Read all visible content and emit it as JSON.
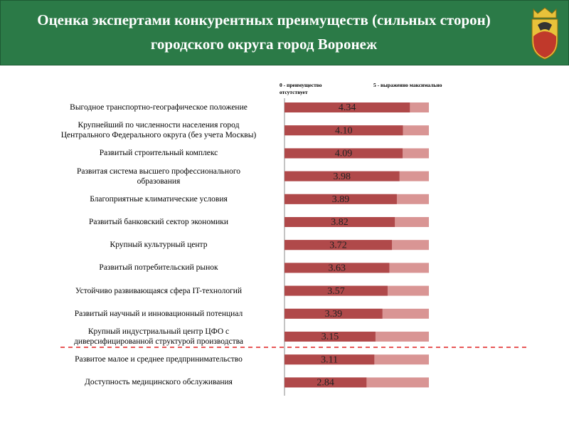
{
  "chart_data": {
    "type": "bar",
    "orientation": "horizontal",
    "title": "Оценка экспертами конкурентных преимуществ (сильных сторон) городского округа город Воронеж",
    "annotations": [
      "0 - преимущество отсутствует",
      "5 - выраженно максимально"
    ],
    "categories": [
      "Выгодное транспортно-географическое положение",
      "Крупнейший по численности населения город\nЦентрального Федерального округа (без учета Москвы)",
      "Развитый строительный комплекс",
      "Развитая система высшего профессионального\nобразования",
      "Благоприятные климатические условия",
      "Развитый банковский сектор экономики",
      "Крупный культурный центр",
      "Развитый потребительский рынок",
      "Устойчиво развивающаяся сфера IT-технологий",
      "Развитый научный и инновационный потенциал",
      "Крупный индустриальный центр ЦФО с\nдиверсифицированной структурой производства",
      "Развитое малое и среднее предпринимательство",
      "Доступность медицинского обслуживания"
    ],
    "values": [
      4.34,
      4.1,
      4.09,
      3.98,
      3.89,
      3.82,
      3.72,
      3.63,
      3.57,
      3.39,
      3.15,
      3.11,
      2.84
    ],
    "value_labels": [
      "4.34",
      "4.10",
      "4.09",
      "3.98",
      "3.89",
      "3.82",
      "3.72",
      "3.63",
      "3.57",
      "3.39",
      "3.15",
      "3.11",
      "2.84"
    ],
    "color": "#b0494a",
    "track_color": "#d99594",
    "xlim": [
      0,
      5
    ]
  }
}
